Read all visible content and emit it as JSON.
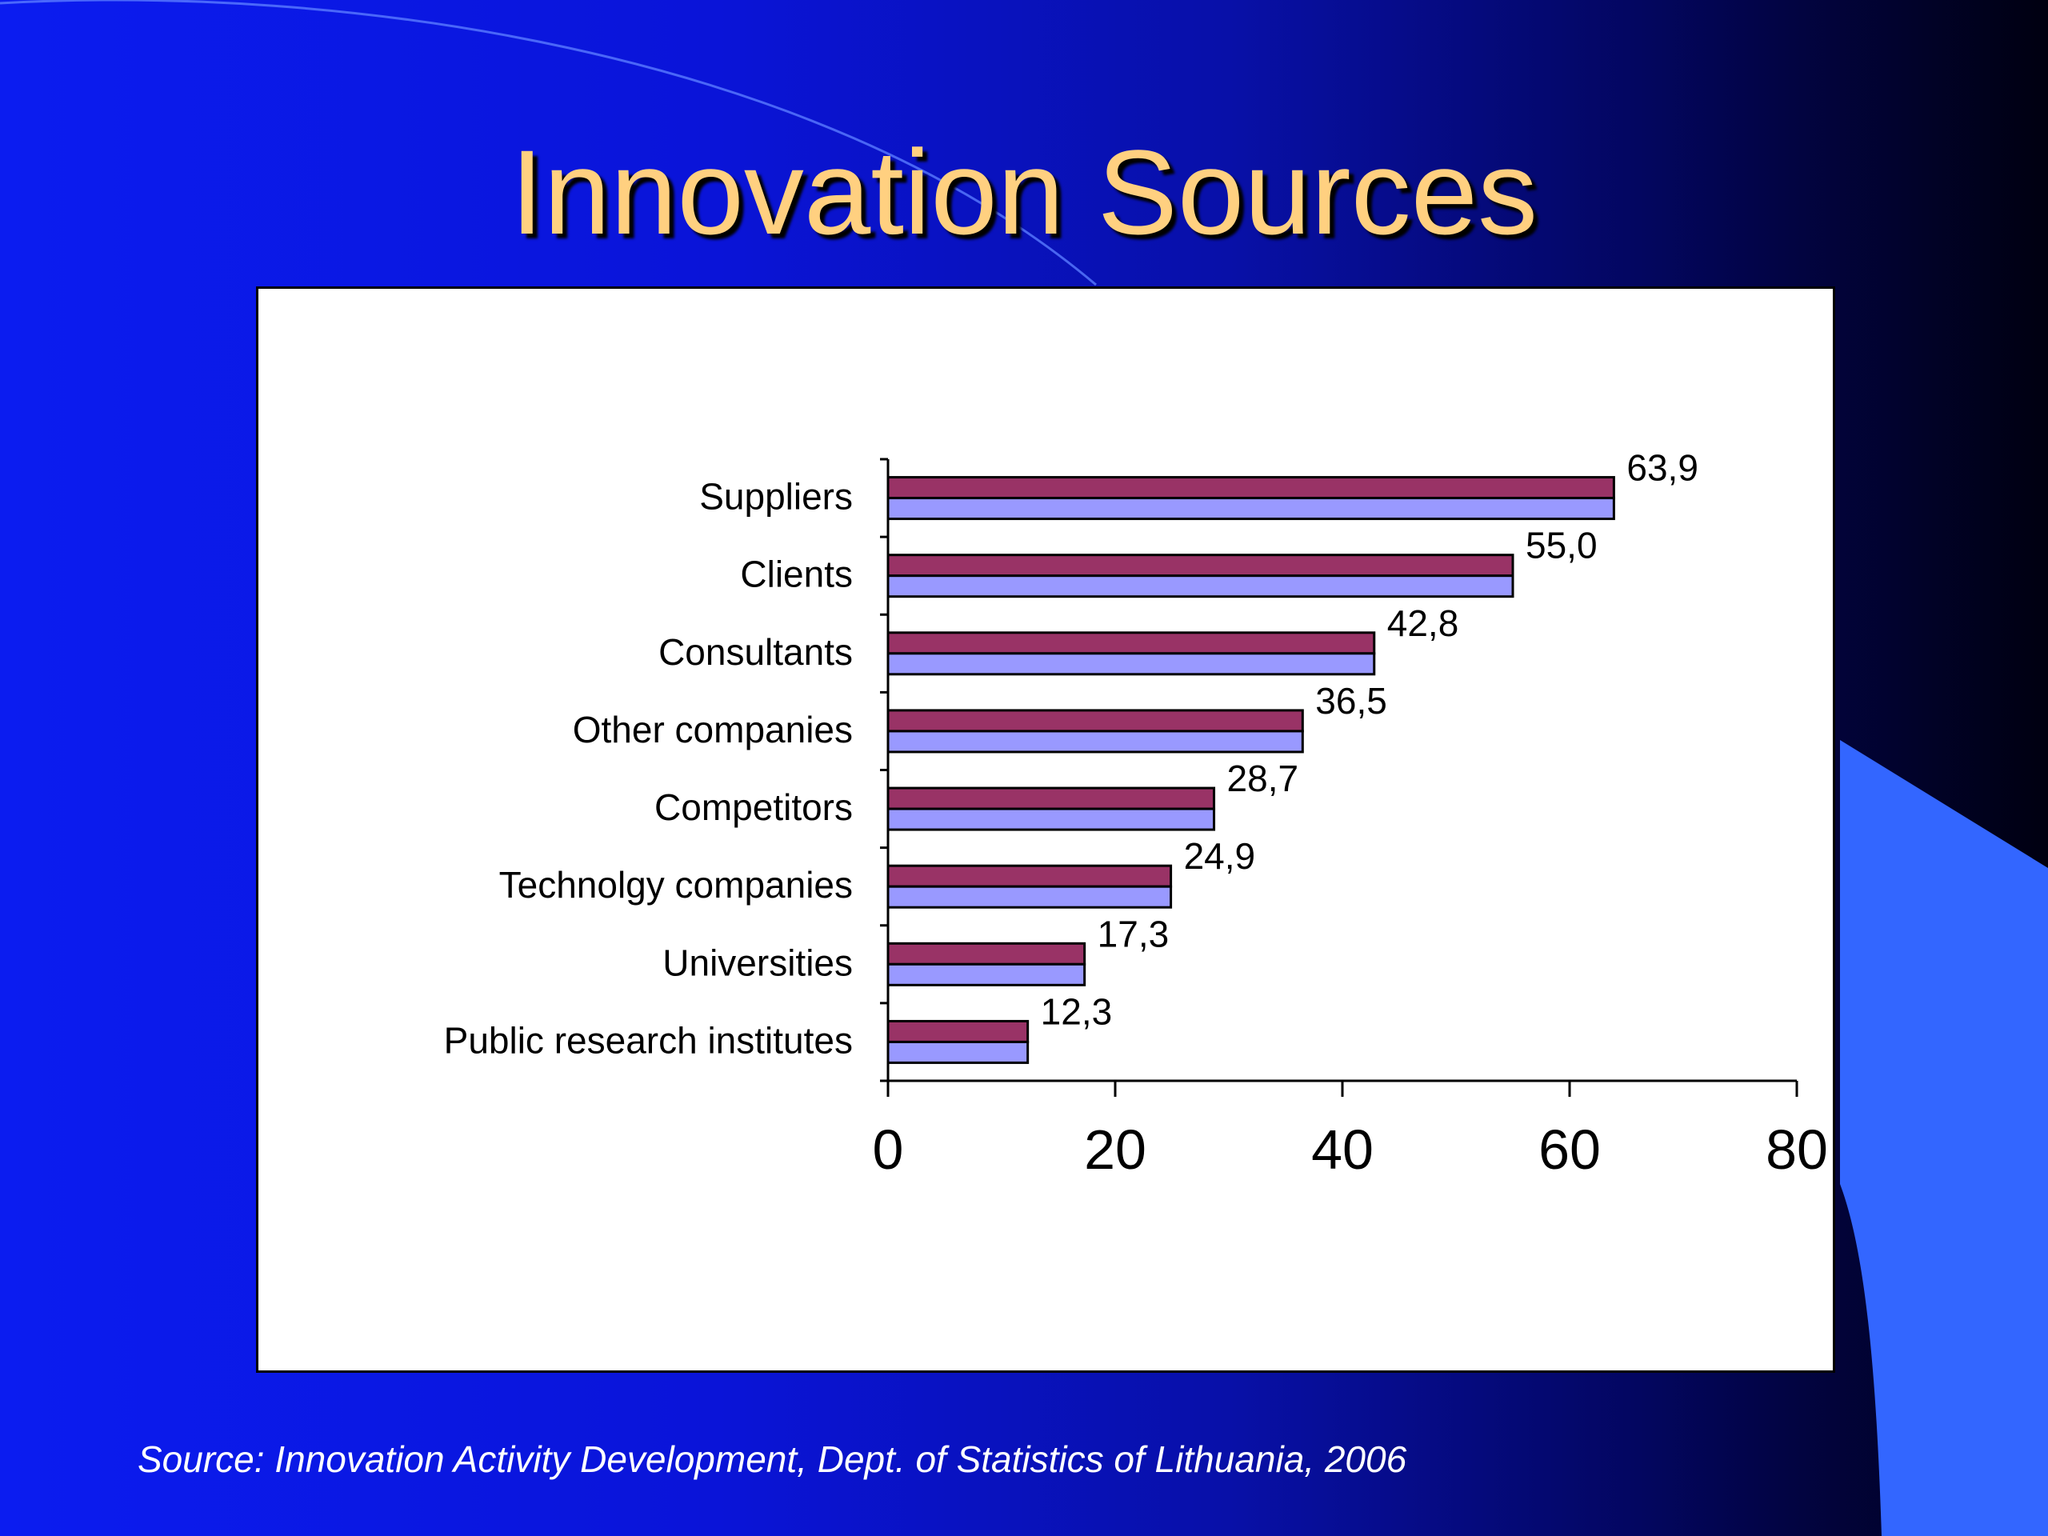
{
  "slide": {
    "title": "Innovation Sources",
    "source": "Source: Innovation Activity Development, Dept. of Statistics of Lithuania, 2006"
  },
  "colors": {
    "title": "#ffd080",
    "series_dark": "#993366",
    "series_light": "#9999ff",
    "accent_shape": "#3366ff"
  },
  "chart_data": {
    "type": "bar",
    "orientation": "horizontal",
    "title": "",
    "xlabel": "",
    "ylabel": "",
    "categories": [
      "Suppliers",
      "Clients",
      "Consultants",
      "Other companies",
      "Competitors",
      "Technolgy companies",
      "Universities",
      "Public research institutes"
    ],
    "series": [
      {
        "color": "#993366",
        "values": [
          63.9,
          55.0,
          42.8,
          36.5,
          28.7,
          24.9,
          17.3,
          12.3
        ]
      },
      {
        "color": "#9999ff",
        "values": [
          63.9,
          55.0,
          42.8,
          36.5,
          28.7,
          24.9,
          17.3,
          12.3
        ]
      }
    ],
    "data_labels": [
      "63,9",
      "55,0",
      "42,8",
      "36,5",
      "28,7",
      "24,9",
      "17,3",
      "12,3"
    ],
    "xlim": [
      0,
      80
    ],
    "x_ticks": [
      0,
      20,
      40,
      60,
      80
    ],
    "grid": false,
    "legend": "none"
  }
}
